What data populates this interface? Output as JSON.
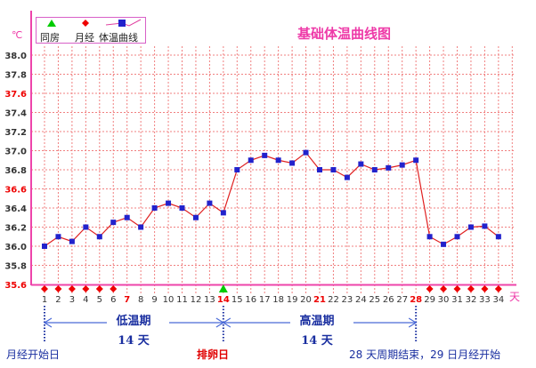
{
  "header": {
    "title": "基础体温曲线图",
    "unit_temp": "℃",
    "unit_day": "天"
  },
  "legend": {
    "items": [
      {
        "label": "同房",
        "icon": "green-triangle-icon",
        "color": "#00cc00"
      },
      {
        "label": "月经",
        "icon": "red-diamond-icon",
        "color": "#ee0000"
      },
      {
        "label": "体温曲线",
        "icon": "blue-square-line-icon",
        "color": "#2020cc"
      }
    ]
  },
  "colors": {
    "grid": "#f08080",
    "axis": "#ee44aa",
    "line": "#e02020",
    "marker": "#2222cc",
    "highlight_tick": "#ee0000",
    "normal_tick": "#333333",
    "annotation": "#1a2fa0"
  },
  "chart_data": {
    "type": "line",
    "title": "基础体温曲线图",
    "xlabel": "天",
    "ylabel": "℃",
    "ylim": [
      35.6,
      38.0
    ],
    "yticks": [
      38.0,
      37.8,
      37.6,
      37.4,
      37.2,
      37.0,
      36.8,
      36.6,
      36.4,
      36.2,
      36.0,
      35.8,
      35.6
    ],
    "yticks_highlighted": [
      37.6,
      36.6,
      35.6
    ],
    "x": [
      1,
      2,
      3,
      4,
      5,
      6,
      7,
      8,
      9,
      10,
      11,
      12,
      13,
      14,
      15,
      16,
      17,
      18,
      19,
      20,
      21,
      22,
      23,
      24,
      25,
      26,
      27,
      28,
      29,
      30,
      31,
      32,
      33,
      34
    ],
    "xticks_highlighted": [
      7,
      14,
      21,
      28
    ],
    "grid": true,
    "series": [
      {
        "name": "体温曲线",
        "values": [
          36.0,
          36.1,
          36.05,
          36.2,
          36.1,
          36.25,
          36.3,
          36.2,
          36.4,
          36.45,
          36.4,
          36.3,
          36.45,
          36.35,
          36.8,
          36.9,
          36.95,
          36.9,
          36.87,
          36.98,
          36.8,
          36.8,
          36.72,
          36.86,
          36.8,
          36.82,
          36.85,
          36.9,
          36.1,
          36.02,
          36.1,
          36.2,
          36.21,
          36.1
        ]
      }
    ],
    "events": {
      "menstruation_days": [
        1,
        2,
        3,
        4,
        5,
        6,
        29,
        30,
        31,
        32,
        33,
        34
      ],
      "intercourse_days": [
        14
      ]
    },
    "annotations": [
      {
        "text": "低温期",
        "sub": "14 天",
        "from_day": 1,
        "to_day": 14
      },
      {
        "text": "高温期",
        "sub": "14 天",
        "from_day": 14,
        "to_day": 28
      },
      {
        "text": "月经开始日",
        "at_day": 1
      },
      {
        "text": "排卵日",
        "at_day": 14
      },
      {
        "text": "28 天周期结束，29 日月经开始",
        "at_day": 28
      }
    ]
  },
  "annotations": {
    "low_phase": {
      "label": "低温期",
      "days": "14 天"
    },
    "high_phase": {
      "label": "高温期",
      "days": "14 天"
    },
    "period_start": "月经开始日",
    "ovulation_day": "排卵日",
    "cycle_end": "28 天周期结束，29 日月经开始"
  }
}
